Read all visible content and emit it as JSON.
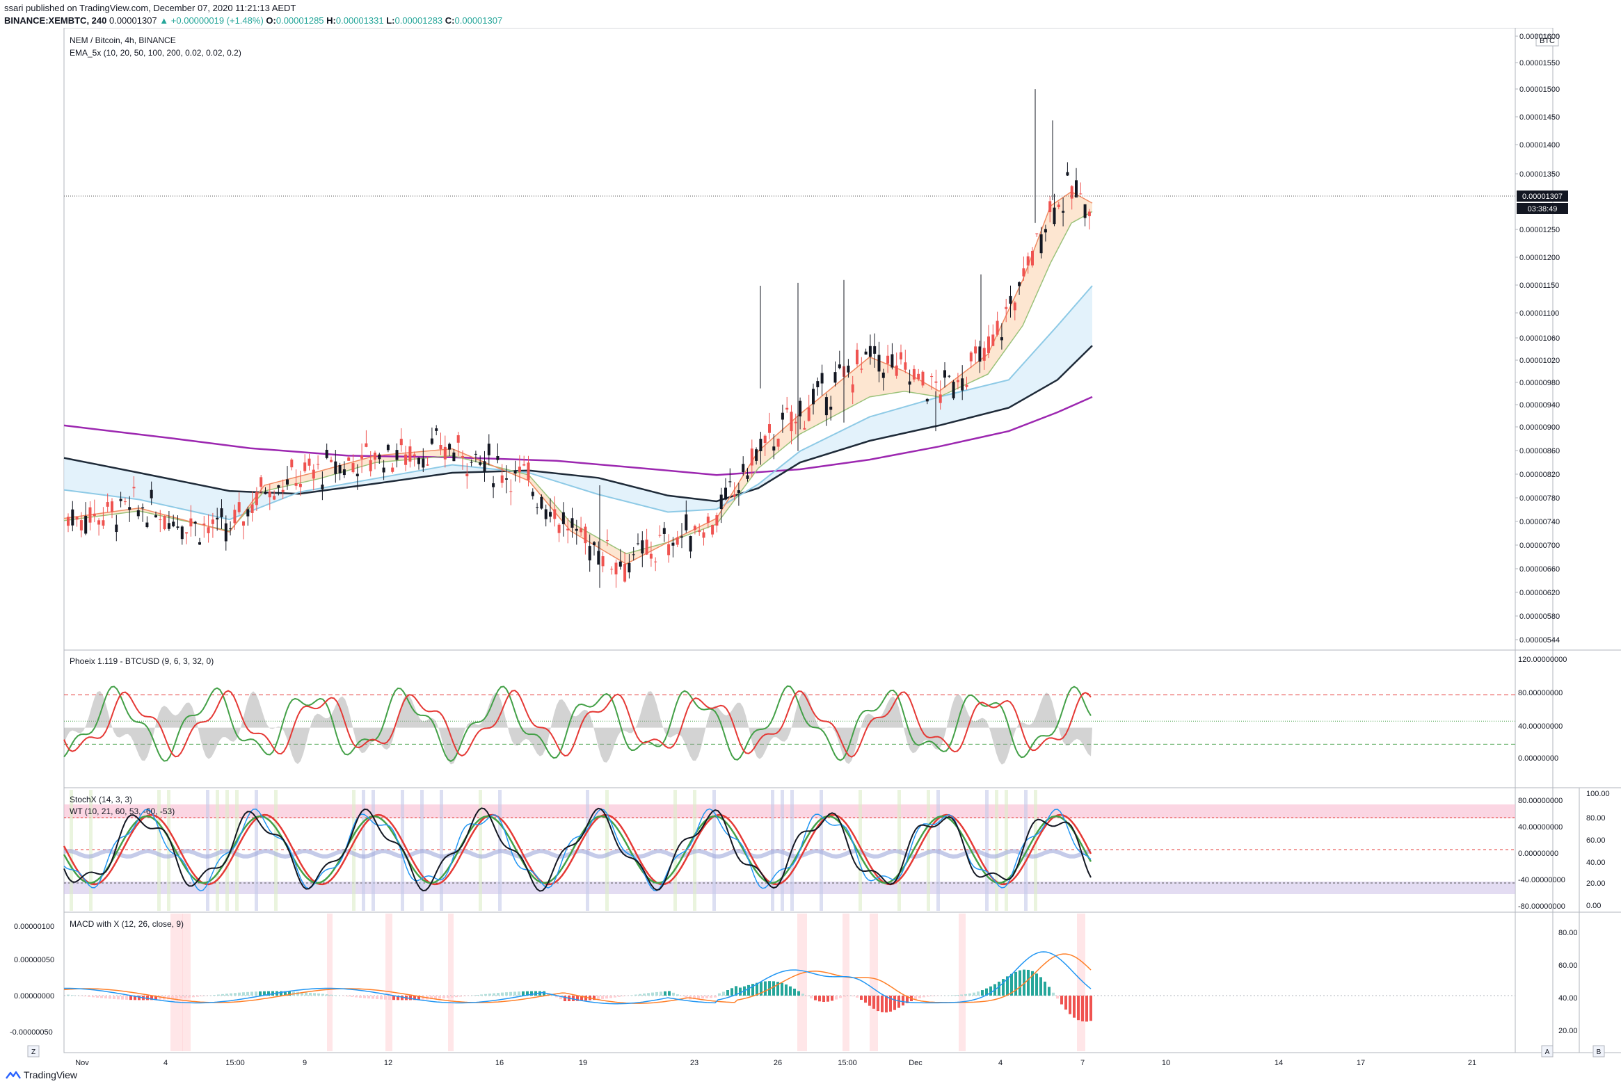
{
  "header": {
    "publisher_line": "ssari published on TradingView.com, December 07, 2020 11:21:13 AEDT",
    "symbol": "BINANCE:XEMBTC, 240",
    "last": "0.00001307",
    "change": "▲ +0.00000019 (+1.48%)",
    "o_label": "O:",
    "o_value": "0.00001285",
    "h_label": "H:",
    "h_value": "0.00001331",
    "l_label": "L:",
    "l_value": "0.00001283",
    "c_label": "C:",
    "c_value": "0.00001307"
  },
  "main_pane": {
    "title": "NEM / Bitcoin, 4h, BINANCE",
    "indicator": "EMA_5x (10, 20, 50, 100, 200, 0.02, 0.02, 0.2)",
    "currency_badge": "BTC",
    "price_ticks": [
      "0.00001600",
      "0.00001550",
      "0.00001500",
      "0.00001450",
      "0.00001400",
      "0.00001350",
      "0.00001250",
      "0.00001200",
      "0.00001150",
      "0.00001100",
      "0.00001060",
      "0.00001020",
      "0.00000980",
      "0.00000940",
      "0.00000900",
      "0.00000860",
      "0.00000820",
      "0.00000780",
      "0.00000740",
      "0.00000700",
      "0.00000660",
      "0.00000620",
      "0.00000580",
      "0.00000544"
    ],
    "last_price_label": "0.00001307",
    "countdown_label": "03:38:49"
  },
  "phoeix_pane": {
    "title": "Phoeix 1.119 - BTCUSD (9, 6, 3, 32, 0)",
    "ticks": [
      "120.00000000",
      "80.00000000",
      "40.00000000",
      "0.00000000"
    ]
  },
  "stoch_pane": {
    "title1": "StochX (14, 3, 3)",
    "title2": "WT (10, 21, 60, 53, -60, -53)",
    "left_ticks": [
      "80.00000000",
      "40.00000000",
      "0.00000000",
      "-40.00000000",
      "-80.00000000"
    ],
    "right_ticks": [
      "100.00",
      "80.00",
      "60.00",
      "40.00",
      "20.00",
      "0.00"
    ]
  },
  "macd_pane": {
    "title": "MACD with X (12, 26, close, 9)",
    "left_ticks": [
      "0.00000100",
      "0.00000050",
      "0.00000000",
      "-0.00000050"
    ],
    "right_ticks": [
      "80.00",
      "60.00",
      "40.00",
      "20.00"
    ]
  },
  "time_axis": {
    "labels": [
      "Nov",
      "4",
      "15:00",
      "9",
      "12",
      "16",
      "19",
      "23",
      "26",
      "15:00",
      "Dec",
      "4",
      "7",
      "10",
      "14",
      "17",
      "21"
    ],
    "left_button": "Z",
    "right_button_a": "A",
    "right_button_b": "B"
  },
  "footer": {
    "brand": "TradingView"
  },
  "colors": {
    "up": "#26a69a",
    "down": "#ef5350",
    "candle_up_body": "#131722",
    "ema10": "#ef8a62",
    "ema20": "#9bc27a",
    "ema50": "#8ecae6",
    "ema100": "#1e2a38",
    "ema200": "#9c27b0",
    "phoeix_green": "#43a047",
    "phoeix_red": "#e53935",
    "wt_blue": "#2196f3",
    "macd_blue": "#2196f3",
    "macd_orange": "#ff7f27"
  }
}
